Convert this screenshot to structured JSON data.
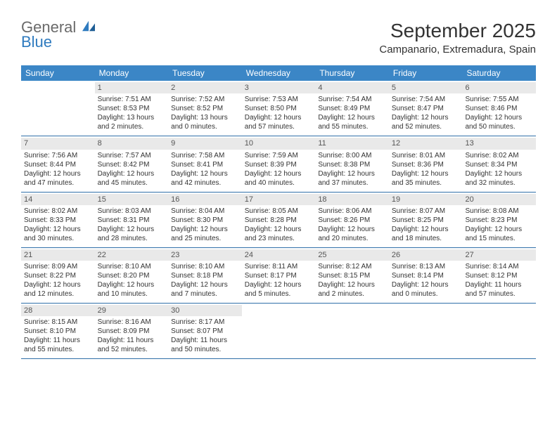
{
  "brand": {
    "line1": "General",
    "line2": "Blue"
  },
  "title": "September 2025",
  "location": "Campanario, Extremadura, Spain",
  "colors": {
    "header_bg": "#3b86c6",
    "header_text": "#ffffff",
    "row_divider": "#2f6fa8",
    "daynum_bg": "#e9e9e9",
    "body_text": "#333333",
    "logo_gray": "#6a6a6a",
    "logo_blue": "#2f7bbf"
  },
  "fonts": {
    "title_pt": 28,
    "location_pt": 15,
    "dow_pt": 12,
    "daynum_pt": 11,
    "body_pt": 10
  },
  "days_of_week": [
    "Sunday",
    "Monday",
    "Tuesday",
    "Wednesday",
    "Thursday",
    "Friday",
    "Saturday"
  ],
  "weeks": [
    [
      {
        "n": "",
        "lines": []
      },
      {
        "n": "1",
        "lines": [
          "Sunrise: 7:51 AM",
          "Sunset: 8:53 PM",
          "Daylight: 13 hours and 2 minutes."
        ]
      },
      {
        "n": "2",
        "lines": [
          "Sunrise: 7:52 AM",
          "Sunset: 8:52 PM",
          "Daylight: 13 hours and 0 minutes."
        ]
      },
      {
        "n": "3",
        "lines": [
          "Sunrise: 7:53 AM",
          "Sunset: 8:50 PM",
          "Daylight: 12 hours and 57 minutes."
        ]
      },
      {
        "n": "4",
        "lines": [
          "Sunrise: 7:54 AM",
          "Sunset: 8:49 PM",
          "Daylight: 12 hours and 55 minutes."
        ]
      },
      {
        "n": "5",
        "lines": [
          "Sunrise: 7:54 AM",
          "Sunset: 8:47 PM",
          "Daylight: 12 hours and 52 minutes."
        ]
      },
      {
        "n": "6",
        "lines": [
          "Sunrise: 7:55 AM",
          "Sunset: 8:46 PM",
          "Daylight: 12 hours and 50 minutes."
        ]
      }
    ],
    [
      {
        "n": "7",
        "lines": [
          "Sunrise: 7:56 AM",
          "Sunset: 8:44 PM",
          "Daylight: 12 hours and 47 minutes."
        ]
      },
      {
        "n": "8",
        "lines": [
          "Sunrise: 7:57 AM",
          "Sunset: 8:42 PM",
          "Daylight: 12 hours and 45 minutes."
        ]
      },
      {
        "n": "9",
        "lines": [
          "Sunrise: 7:58 AM",
          "Sunset: 8:41 PM",
          "Daylight: 12 hours and 42 minutes."
        ]
      },
      {
        "n": "10",
        "lines": [
          "Sunrise: 7:59 AM",
          "Sunset: 8:39 PM",
          "Daylight: 12 hours and 40 minutes."
        ]
      },
      {
        "n": "11",
        "lines": [
          "Sunrise: 8:00 AM",
          "Sunset: 8:38 PM",
          "Daylight: 12 hours and 37 minutes."
        ]
      },
      {
        "n": "12",
        "lines": [
          "Sunrise: 8:01 AM",
          "Sunset: 8:36 PM",
          "Daylight: 12 hours and 35 minutes."
        ]
      },
      {
        "n": "13",
        "lines": [
          "Sunrise: 8:02 AM",
          "Sunset: 8:34 PM",
          "Daylight: 12 hours and 32 minutes."
        ]
      }
    ],
    [
      {
        "n": "14",
        "lines": [
          "Sunrise: 8:02 AM",
          "Sunset: 8:33 PM",
          "Daylight: 12 hours and 30 minutes."
        ]
      },
      {
        "n": "15",
        "lines": [
          "Sunrise: 8:03 AM",
          "Sunset: 8:31 PM",
          "Daylight: 12 hours and 28 minutes."
        ]
      },
      {
        "n": "16",
        "lines": [
          "Sunrise: 8:04 AM",
          "Sunset: 8:30 PM",
          "Daylight: 12 hours and 25 minutes."
        ]
      },
      {
        "n": "17",
        "lines": [
          "Sunrise: 8:05 AM",
          "Sunset: 8:28 PM",
          "Daylight: 12 hours and 23 minutes."
        ]
      },
      {
        "n": "18",
        "lines": [
          "Sunrise: 8:06 AM",
          "Sunset: 8:26 PM",
          "Daylight: 12 hours and 20 minutes."
        ]
      },
      {
        "n": "19",
        "lines": [
          "Sunrise: 8:07 AM",
          "Sunset: 8:25 PM",
          "Daylight: 12 hours and 18 minutes."
        ]
      },
      {
        "n": "20",
        "lines": [
          "Sunrise: 8:08 AM",
          "Sunset: 8:23 PM",
          "Daylight: 12 hours and 15 minutes."
        ]
      }
    ],
    [
      {
        "n": "21",
        "lines": [
          "Sunrise: 8:09 AM",
          "Sunset: 8:22 PM",
          "Daylight: 12 hours and 12 minutes."
        ]
      },
      {
        "n": "22",
        "lines": [
          "Sunrise: 8:10 AM",
          "Sunset: 8:20 PM",
          "Daylight: 12 hours and 10 minutes."
        ]
      },
      {
        "n": "23",
        "lines": [
          "Sunrise: 8:10 AM",
          "Sunset: 8:18 PM",
          "Daylight: 12 hours and 7 minutes."
        ]
      },
      {
        "n": "24",
        "lines": [
          "Sunrise: 8:11 AM",
          "Sunset: 8:17 PM",
          "Daylight: 12 hours and 5 minutes."
        ]
      },
      {
        "n": "25",
        "lines": [
          "Sunrise: 8:12 AM",
          "Sunset: 8:15 PM",
          "Daylight: 12 hours and 2 minutes."
        ]
      },
      {
        "n": "26",
        "lines": [
          "Sunrise: 8:13 AM",
          "Sunset: 8:14 PM",
          "Daylight: 12 hours and 0 minutes."
        ]
      },
      {
        "n": "27",
        "lines": [
          "Sunrise: 8:14 AM",
          "Sunset: 8:12 PM",
          "Daylight: 11 hours and 57 minutes."
        ]
      }
    ],
    [
      {
        "n": "28",
        "lines": [
          "Sunrise: 8:15 AM",
          "Sunset: 8:10 PM",
          "Daylight: 11 hours and 55 minutes."
        ]
      },
      {
        "n": "29",
        "lines": [
          "Sunrise: 8:16 AM",
          "Sunset: 8:09 PM",
          "Daylight: 11 hours and 52 minutes."
        ]
      },
      {
        "n": "30",
        "lines": [
          "Sunrise: 8:17 AM",
          "Sunset: 8:07 PM",
          "Daylight: 11 hours and 50 minutes."
        ]
      },
      {
        "n": "",
        "lines": []
      },
      {
        "n": "",
        "lines": []
      },
      {
        "n": "",
        "lines": []
      },
      {
        "n": "",
        "lines": []
      }
    ]
  ]
}
